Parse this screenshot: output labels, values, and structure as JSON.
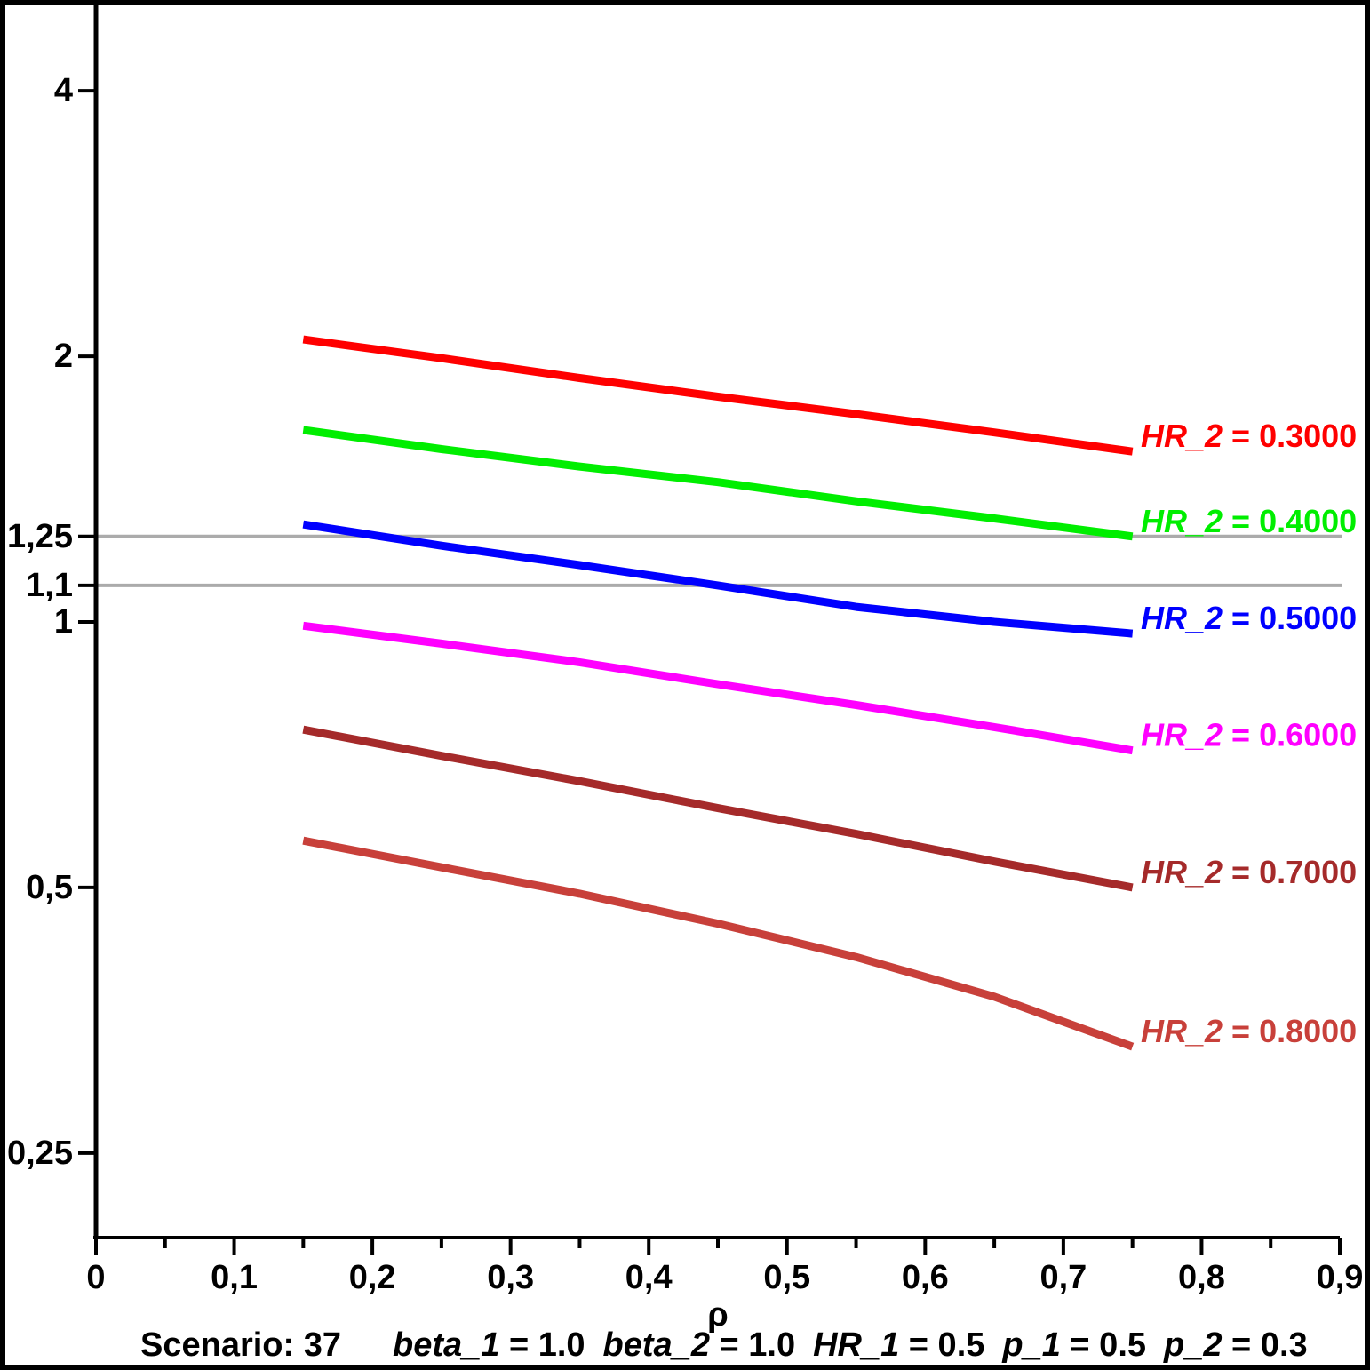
{
  "chart_data": {
    "type": "line",
    "title": "",
    "xlabel": "ρ",
    "ylabel": "",
    "x_scale": "linear",
    "y_scale": "log",
    "x_range": [
      0,
      0.9
    ],
    "y_range": [
      0.2,
      5.0
    ],
    "grid": false,
    "x_tick_step_major": 0.1,
    "x_tick_step_minor": 0.05,
    "x_tick_labels": [
      "0",
      "0,1",
      "0,2",
      "0,3",
      "0,4",
      "0,5",
      "0,6",
      "0,7",
      "0,8",
      "0,9"
    ],
    "y_ticks": [
      {
        "value": 4,
        "label": "4"
      },
      {
        "value": 2,
        "label": "2"
      },
      {
        "value": 1.25,
        "label": "1,25"
      },
      {
        "value": 1.1,
        "label": "1,1"
      },
      {
        "value": 1,
        "label": "1"
      },
      {
        "value": 0.5,
        "label": "0,5"
      },
      {
        "value": 0.25,
        "label": "0,25"
      }
    ],
    "reference_lines": [
      {
        "value": 1.25
      },
      {
        "value": 1.1
      }
    ],
    "reference_color": "#ABABAB",
    "x": [
      0.15,
      0.25,
      0.35,
      0.45,
      0.55,
      0.65,
      0.75
    ],
    "series": [
      {
        "label_var": "HR_2",
        "label_value": "0.3000",
        "color": "#FF0000",
        "values": [
          2.09,
          1.99,
          1.89,
          1.8,
          1.72,
          1.64,
          1.56
        ]
      },
      {
        "label_var": "HR_2",
        "label_value": "0.4000",
        "color": "#00EE00",
        "values": [
          1.65,
          1.57,
          1.5,
          1.44,
          1.37,
          1.31,
          1.25
        ]
      },
      {
        "label_var": "HR_2",
        "label_value": "0.5000",
        "color": "#0000FF",
        "values": [
          1.29,
          1.22,
          1.16,
          1.1,
          1.04,
          1.0,
          0.97
        ]
      },
      {
        "label_var": "HR_2",
        "label_value": "0.6000",
        "color": "#FF00FF",
        "values": [
          0.99,
          0.945,
          0.9,
          0.85,
          0.805,
          0.76,
          0.715
        ]
      },
      {
        "label_var": "HR_2",
        "label_value": "0.7000",
        "color": "#A52A2A",
        "values": [
          0.755,
          0.705,
          0.66,
          0.615,
          0.575,
          0.535,
          0.5
        ]
      },
      {
        "label_var": "HR_2",
        "label_value": "0.8000",
        "color": "#C8403A",
        "values": [
          0.565,
          0.527,
          0.492,
          0.455,
          0.417,
          0.376,
          0.33
        ]
      }
    ],
    "legend_position": "right-of-line-ends"
  },
  "caption": {
    "scenario": "Scenario: 37",
    "parameters": [
      {
        "name": "beta_1",
        "value": "1.0"
      },
      {
        "name": "beta_2",
        "value": "1.0"
      },
      {
        "name": "HR_1",
        "value": "0.5"
      },
      {
        "name": "p_1",
        "value": "0.5"
      },
      {
        "name": "p_2",
        "value": "0.3"
      }
    ]
  },
  "colors": {
    "axis": "#000000",
    "text": "#000000",
    "background": "#FFFFFF",
    "border": "#000000",
    "reference": "#ABABAB"
  }
}
